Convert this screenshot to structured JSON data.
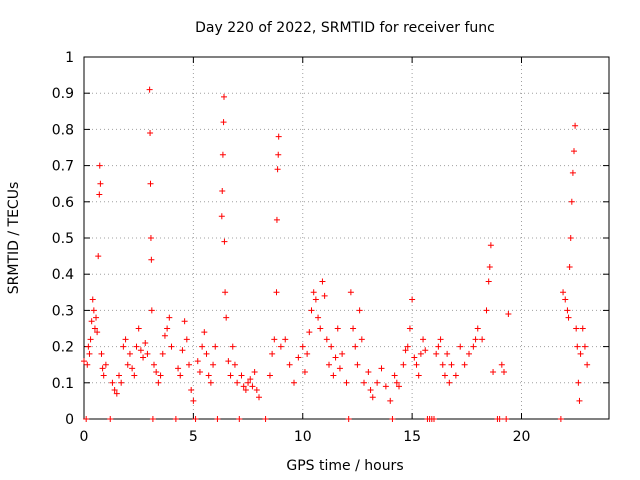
{
  "chart_data": {
    "type": "scatter",
    "title": "Day 220 of 2022, SRMTID for receiver func",
    "xlabel": "GPS time / hours",
    "ylabel": "SRMTID / TECUs",
    "xlim": [
      0,
      24
    ],
    "ylim": [
      0,
      1
    ],
    "x_ticks": [
      0,
      5,
      10,
      15,
      20
    ],
    "x_tick_labels": [
      "0",
      "5",
      "10",
      "15",
      "20"
    ],
    "y_ticks": [
      0,
      0.1,
      0.2,
      0.3,
      0.4,
      0.5,
      0.6,
      0.7,
      0.8,
      0.9,
      1
    ],
    "y_tick_labels": [
      "0",
      "0.1",
      "0.2",
      "0.3",
      "0.4",
      "0.5",
      "0.6",
      "0.7",
      "0.8",
      "0.9",
      "1"
    ],
    "grid": true,
    "marker": "+",
    "color": "#ff0000",
    "series": [
      {
        "name": "SRMTID",
        "points": [
          [
            0.0,
            0.16
          ],
          [
            0.1,
            0.0
          ],
          [
            0.15,
            0.15
          ],
          [
            0.2,
            0.2
          ],
          [
            0.25,
            0.18
          ],
          [
            0.3,
            0.22
          ],
          [
            0.35,
            0.27
          ],
          [
            0.4,
            0.33
          ],
          [
            0.45,
            0.3
          ],
          [
            0.5,
            0.25
          ],
          [
            0.55,
            0.28
          ],
          [
            0.6,
            0.24
          ],
          [
            0.65,
            0.45
          ],
          [
            0.7,
            0.62
          ],
          [
            0.72,
            0.7
          ],
          [
            0.75,
            0.65
          ],
          [
            0.8,
            0.18
          ],
          [
            0.85,
            0.14
          ],
          [
            0.9,
            0.12
          ],
          [
            1.0,
            0.15
          ],
          [
            1.2,
            0.0
          ],
          [
            1.3,
            0.1
          ],
          [
            1.4,
            0.08
          ],
          [
            1.5,
            0.07
          ],
          [
            1.6,
            0.12
          ],
          [
            1.7,
            0.1
          ],
          [
            1.8,
            0.2
          ],
          [
            1.9,
            0.22
          ],
          [
            2.0,
            0.15
          ],
          [
            2.1,
            0.18
          ],
          [
            2.2,
            0.14
          ],
          [
            2.3,
            0.12
          ],
          [
            2.4,
            0.2
          ],
          [
            2.5,
            0.25
          ],
          [
            2.6,
            0.19
          ],
          [
            2.7,
            0.17
          ],
          [
            2.8,
            0.21
          ],
          [
            2.9,
            0.18
          ],
          [
            3.0,
            0.91
          ],
          [
            3.02,
            0.79
          ],
          [
            3.04,
            0.65
          ],
          [
            3.06,
            0.5
          ],
          [
            3.08,
            0.44
          ],
          [
            3.1,
            0.3
          ],
          [
            3.15,
            0.0
          ],
          [
            3.2,
            0.15
          ],
          [
            3.3,
            0.13
          ],
          [
            3.4,
            0.1
          ],
          [
            3.5,
            0.12
          ],
          [
            3.6,
            0.18
          ],
          [
            3.7,
            0.23
          ],
          [
            3.8,
            0.25
          ],
          [
            3.9,
            0.28
          ],
          [
            4.0,
            0.2
          ],
          [
            4.2,
            0.0
          ],
          [
            4.3,
            0.14
          ],
          [
            4.4,
            0.12
          ],
          [
            4.5,
            0.19
          ],
          [
            4.6,
            0.27
          ],
          [
            4.7,
            0.22
          ],
          [
            4.8,
            0.15
          ],
          [
            4.9,
            0.08
          ],
          [
            5.0,
            0.05
          ],
          [
            5.1,
            0.0
          ],
          [
            5.2,
            0.16
          ],
          [
            5.3,
            0.13
          ],
          [
            5.4,
            0.2
          ],
          [
            5.5,
            0.24
          ],
          [
            5.6,
            0.18
          ],
          [
            5.7,
            0.12
          ],
          [
            5.8,
            0.1
          ],
          [
            5.9,
            0.15
          ],
          [
            6.0,
            0.2
          ],
          [
            6.1,
            0.0
          ],
          [
            6.3,
            0.56
          ],
          [
            6.32,
            0.63
          ],
          [
            6.35,
            0.73
          ],
          [
            6.38,
            0.82
          ],
          [
            6.4,
            0.89
          ],
          [
            6.42,
            0.49
          ],
          [
            6.45,
            0.35
          ],
          [
            6.5,
            0.28
          ],
          [
            6.6,
            0.16
          ],
          [
            6.7,
            0.12
          ],
          [
            6.8,
            0.2
          ],
          [
            6.9,
            0.15
          ],
          [
            7.0,
            0.1
          ],
          [
            7.1,
            0.0
          ],
          [
            7.2,
            0.12
          ],
          [
            7.3,
            0.09
          ],
          [
            7.4,
            0.08
          ],
          [
            7.5,
            0.1
          ],
          [
            7.6,
            0.11
          ],
          [
            7.7,
            0.09
          ],
          [
            7.8,
            0.13
          ],
          [
            7.9,
            0.08
          ],
          [
            8.0,
            0.06
          ],
          [
            8.3,
            0.0
          ],
          [
            8.5,
            0.12
          ],
          [
            8.6,
            0.18
          ],
          [
            8.7,
            0.22
          ],
          [
            8.8,
            0.35
          ],
          [
            8.82,
            0.55
          ],
          [
            8.85,
            0.69
          ],
          [
            8.88,
            0.73
          ],
          [
            8.9,
            0.78
          ],
          [
            9.0,
            0.2
          ],
          [
            9.2,
            0.22
          ],
          [
            9.4,
            0.15
          ],
          [
            9.6,
            0.1
          ],
          [
            9.8,
            0.17
          ],
          [
            10.0,
            0.2
          ],
          [
            10.1,
            0.13
          ],
          [
            10.2,
            0.18
          ],
          [
            10.3,
            0.24
          ],
          [
            10.4,
            0.3
          ],
          [
            10.5,
            0.35
          ],
          [
            10.6,
            0.33
          ],
          [
            10.7,
            0.28
          ],
          [
            10.8,
            0.25
          ],
          [
            10.9,
            0.38
          ],
          [
            11.0,
            0.34
          ],
          [
            11.1,
            0.22
          ],
          [
            11.2,
            0.15
          ],
          [
            11.3,
            0.2
          ],
          [
            11.4,
            0.12
          ],
          [
            11.5,
            0.17
          ],
          [
            11.6,
            0.25
          ],
          [
            11.7,
            0.14
          ],
          [
            11.8,
            0.18
          ],
          [
            12.0,
            0.1
          ],
          [
            12.1,
            0.0
          ],
          [
            12.2,
            0.35
          ],
          [
            12.3,
            0.25
          ],
          [
            12.4,
            0.2
          ],
          [
            12.5,
            0.15
          ],
          [
            12.6,
            0.3
          ],
          [
            12.7,
            0.22
          ],
          [
            12.8,
            0.1
          ],
          [
            13.0,
            0.13
          ],
          [
            13.1,
            0.08
          ],
          [
            13.2,
            0.06
          ],
          [
            13.4,
            0.1
          ],
          [
            13.6,
            0.14
          ],
          [
            13.8,
            0.09
          ],
          [
            14.0,
            0.05
          ],
          [
            14.1,
            0.0
          ],
          [
            14.2,
            0.12
          ],
          [
            14.3,
            0.1
          ],
          [
            14.4,
            0.09
          ],
          [
            14.6,
            0.15
          ],
          [
            14.7,
            0.19
          ],
          [
            14.8,
            0.2
          ],
          [
            14.9,
            0.25
          ],
          [
            15.0,
            0.33
          ],
          [
            15.1,
            0.17
          ],
          [
            15.2,
            0.15
          ],
          [
            15.3,
            0.12
          ],
          [
            15.4,
            0.18
          ],
          [
            15.5,
            0.22
          ],
          [
            15.6,
            0.19
          ],
          [
            15.7,
            0.0
          ],
          [
            15.8,
            0.0
          ],
          [
            15.9,
            0.0
          ],
          [
            16.0,
            0.0
          ],
          [
            16.1,
            0.18
          ],
          [
            16.2,
            0.2
          ],
          [
            16.3,
            0.22
          ],
          [
            16.4,
            0.15
          ],
          [
            16.5,
            0.12
          ],
          [
            16.6,
            0.18
          ],
          [
            16.7,
            0.1
          ],
          [
            16.8,
            0.15
          ],
          [
            17.0,
            0.12
          ],
          [
            17.2,
            0.2
          ],
          [
            17.4,
            0.15
          ],
          [
            17.6,
            0.18
          ],
          [
            17.8,
            0.2
          ],
          [
            17.9,
            0.22
          ],
          [
            18.0,
            0.25
          ],
          [
            18.2,
            0.22
          ],
          [
            18.4,
            0.3
          ],
          [
            18.5,
            0.38
          ],
          [
            18.55,
            0.42
          ],
          [
            18.6,
            0.48
          ],
          [
            18.7,
            0.13
          ],
          [
            18.9,
            0.0
          ],
          [
            19.0,
            0.0
          ],
          [
            19.1,
            0.15
          ],
          [
            19.2,
            0.13
          ],
          [
            19.3,
            0.0
          ],
          [
            19.4,
            0.29
          ],
          [
            21.8,
            0.0
          ],
          [
            21.9,
            0.35
          ],
          [
            22.0,
            0.33
          ],
          [
            22.1,
            0.3
          ],
          [
            22.15,
            0.28
          ],
          [
            22.2,
            0.42
          ],
          [
            22.25,
            0.5
          ],
          [
            22.3,
            0.6
          ],
          [
            22.35,
            0.68
          ],
          [
            22.4,
            0.74
          ],
          [
            22.45,
            0.81
          ],
          [
            22.5,
            0.25
          ],
          [
            22.55,
            0.2
          ],
          [
            22.6,
            0.1
          ],
          [
            22.65,
            0.05
          ],
          [
            22.7,
            0.18
          ],
          [
            22.8,
            0.25
          ],
          [
            22.9,
            0.2
          ],
          [
            23.0,
            0.15
          ]
        ]
      }
    ]
  }
}
